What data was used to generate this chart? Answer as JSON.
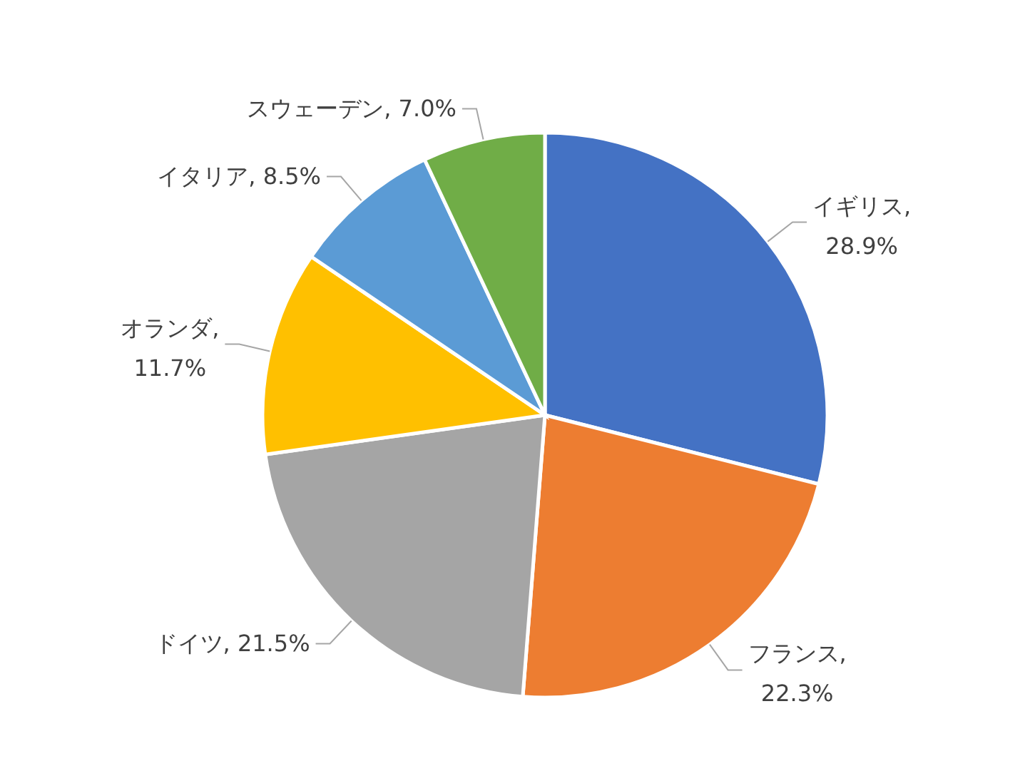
{
  "chart_data": {
    "type": "pie",
    "categories": [
      "イギリス",
      "フランス",
      "ドイツ",
      "オランダ",
      "イタリア",
      "スウェーデン"
    ],
    "values": [
      28.9,
      22.3,
      21.5,
      11.7,
      8.5,
      7.0
    ],
    "colors": [
      "#4472c4",
      "#ed7d31",
      "#a5a5a5",
      "#ffc000",
      "#5b9bd5",
      "#70ad47"
    ],
    "value_labels": [
      ", 28.9%",
      ", 22.3%",
      ", 21.5%",
      ", 11.7%",
      ", 8.5%",
      ", 7.0%"
    ],
    "legend": false
  }
}
